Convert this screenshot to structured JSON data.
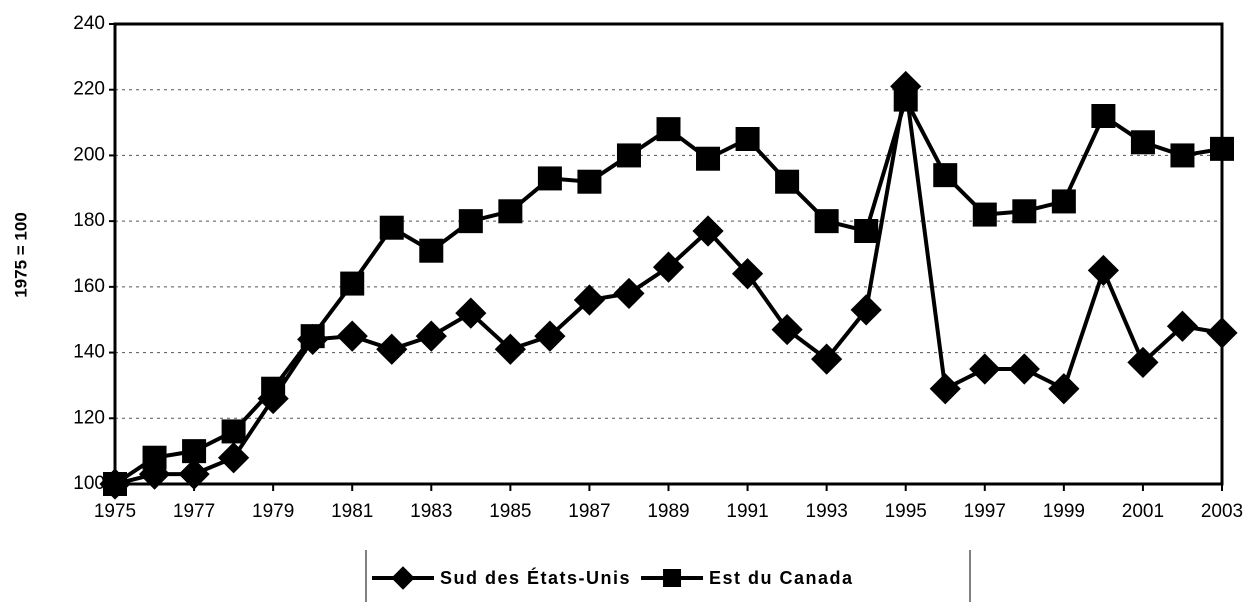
{
  "chart_data": {
    "type": "line",
    "y_label": "1975 = 100",
    "x": [
      1975,
      1976,
      1977,
      1978,
      1979,
      1980,
      1981,
      1982,
      1983,
      1984,
      1985,
      1986,
      1987,
      1988,
      1989,
      1990,
      1991,
      1992,
      1993,
      1994,
      1995,
      1996,
      1997,
      1998,
      1999,
      2000,
      2001,
      2002,
      2003
    ],
    "series": [
      {
        "name": "Sud des États-Unis",
        "color": "#000000",
        "marker": "diamond",
        "values": [
          100,
          103,
          103,
          108,
          126,
          144,
          145,
          141,
          145,
          152,
          141,
          145,
          156,
          158,
          166,
          177,
          164,
          147,
          138,
          153,
          221,
          129,
          135,
          135,
          129,
          165,
          137,
          148,
          146
        ]
      },
      {
        "name": "Est du Canada",
        "color": "#000000",
        "marker": "square",
        "values": [
          100,
          108,
          110,
          116,
          129,
          145,
          161,
          178,
          171,
          180,
          183,
          193,
          192,
          200,
          208,
          199,
          205,
          192,
          180,
          177,
          217,
          194,
          182,
          183,
          186,
          212,
          204,
          200,
          202
        ]
      }
    ],
    "xlim": [
      1975,
      2003
    ],
    "xticks": [
      1975,
      1977,
      1979,
      1981,
      1983,
      1985,
      1987,
      1989,
      1991,
      1993,
      1995,
      1997,
      1999,
      2001,
      2003
    ],
    "ylim": [
      100,
      240
    ],
    "yticks": [
      100,
      120,
      140,
      160,
      180,
      200,
      220,
      240
    ],
    "grid": true,
    "legend": "bottom"
  }
}
